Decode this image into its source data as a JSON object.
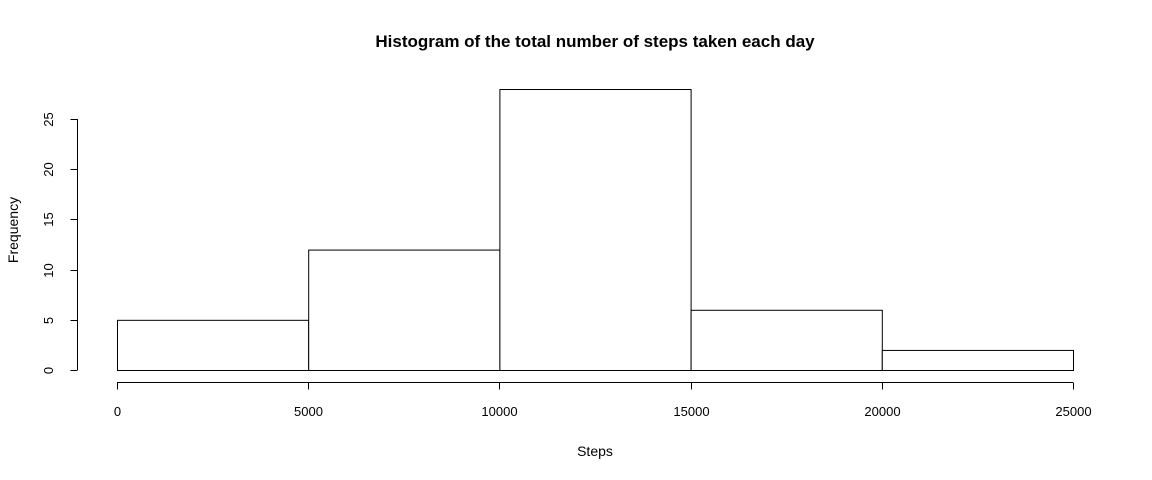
{
  "chart_data": {
    "type": "bar",
    "title": "Histogram of the total number of steps taken each day",
    "xlabel": "Steps",
    "ylabel": "Frequency",
    "bins": [
      {
        "start": 0,
        "end": 5000,
        "count": 5
      },
      {
        "start": 5000,
        "end": 10000,
        "count": 12
      },
      {
        "start": 10000,
        "end": 15000,
        "count": 28
      },
      {
        "start": 15000,
        "end": 20000,
        "count": 6
      },
      {
        "start": 20000,
        "end": 25000,
        "count": 2
      }
    ],
    "xticks": [
      0,
      5000,
      10000,
      15000,
      20000,
      25000
    ],
    "yticks": [
      0,
      5,
      10,
      15,
      20,
      25
    ],
    "xlim": [
      0,
      25000
    ],
    "ylim": [
      0,
      28
    ],
    "grid": false,
    "colors": {
      "bar_fill": "#ffffff",
      "bar_stroke": "#000000"
    }
  }
}
